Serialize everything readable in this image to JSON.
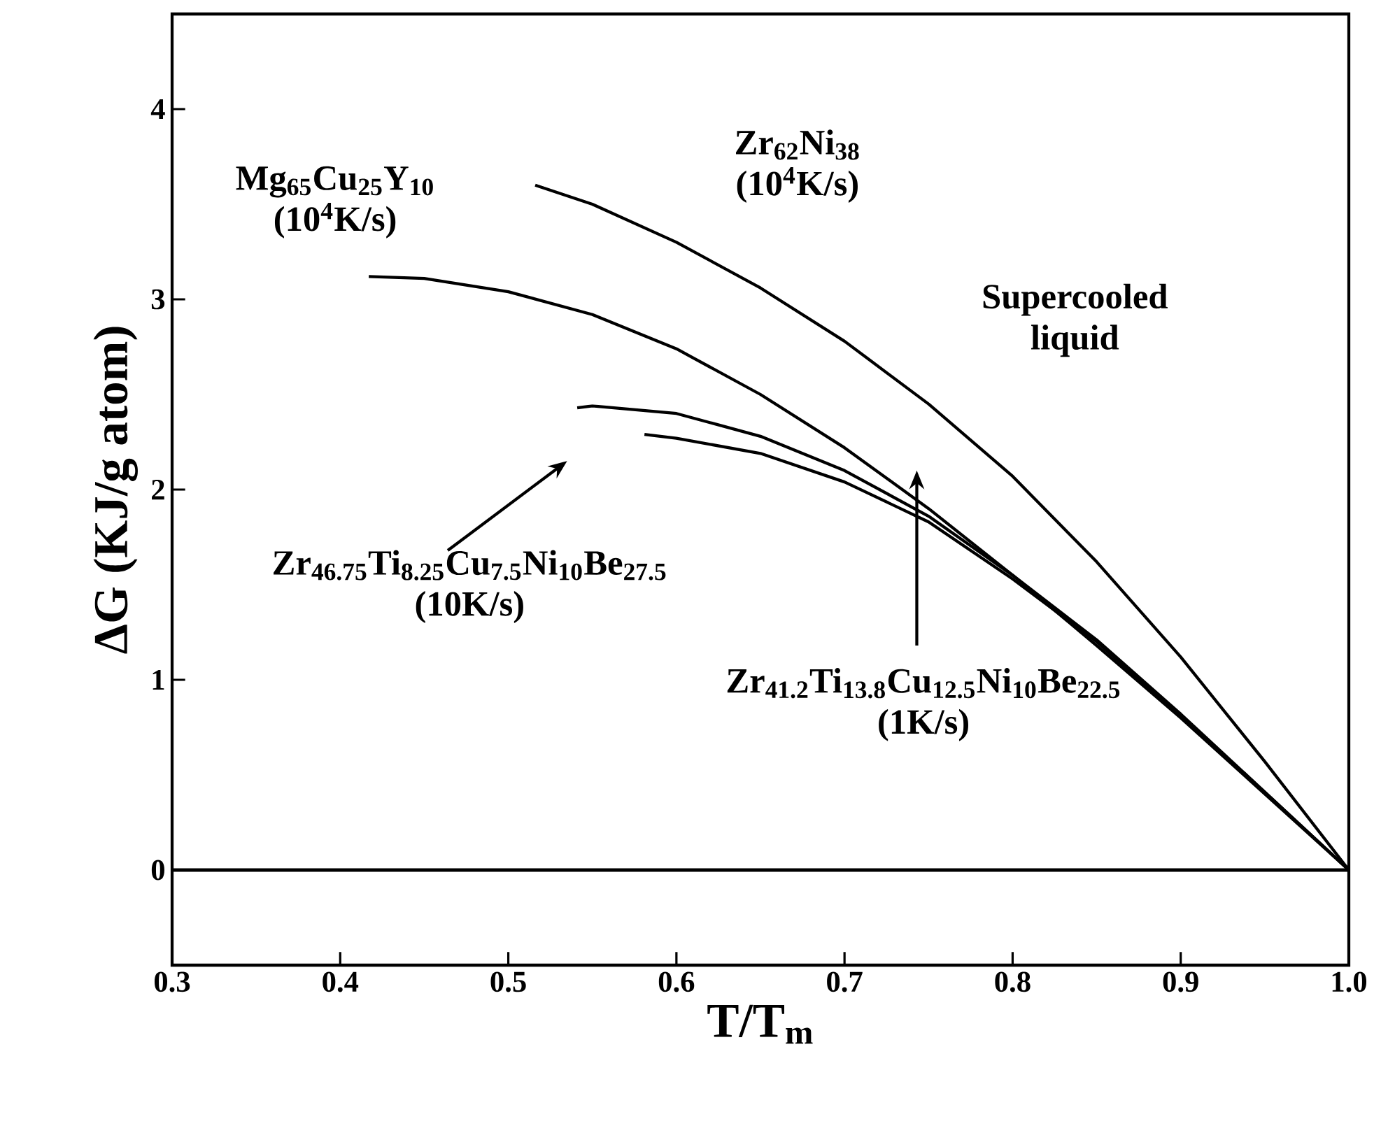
{
  "chart_data": {
    "type": "line",
    "xlabel": "T/T$_{m}$",
    "ylabel": "ΔG (KJ/g atom)",
    "xlim": [
      0.3,
      1.0
    ],
    "ylim": [
      -0.5,
      4.5
    ],
    "xticks": [
      0.3,
      0.4,
      0.5,
      0.6,
      0.7,
      0.8,
      0.9,
      {
        "value": 1.0,
        "label": "1.0"
      }
    ],
    "yticks": [
      0,
      1,
      2,
      3,
      4
    ],
    "grid": false,
    "marker": "none",
    "line_style": "solid",
    "ref_lines": [
      {
        "axis": "y",
        "value": 0,
        "color": "#000000"
      }
    ],
    "annotations": [
      "Supercooled liquid"
    ],
    "series": [
      {
        "name": "Zr$_{62}$Ni$_{38}$ (10$^{4}$K/s)",
        "color": "#000000",
        "x": [
          0.516,
          0.55,
          0.6,
          0.65,
          0.7,
          0.75,
          0.8,
          0.85,
          0.9,
          0.95,
          1.0
        ],
        "values": [
          3.6,
          3.5,
          3.3,
          3.06,
          2.78,
          2.45,
          2.07,
          1.62,
          1.12,
          0.57,
          0
        ]
      },
      {
        "name": "Mg$_{65}$Cu$_{25}$Y$_{10}$ (10$^{4}$K/s)",
        "color": "#000000",
        "x": [
          0.417,
          0.45,
          0.5,
          0.55,
          0.6,
          0.65,
          0.7,
          0.75,
          0.8,
          0.85,
          0.9,
          0.95,
          1.0
        ],
        "values": [
          3.12,
          3.11,
          3.04,
          2.92,
          2.74,
          2.5,
          2.22,
          1.9,
          1.55,
          1.18,
          0.8,
          0.4,
          0
        ]
      },
      {
        "name": "Zr$_{46.75}$Ti$_{8.25}$Cu$_{7.5}$Ni$_{10}$Be$_{27.5}$ (10K/s)",
        "color": "#000000",
        "x": [
          0.541,
          0.55,
          0.6,
          0.65,
          0.7,
          0.75,
          0.8,
          0.85,
          0.9,
          0.95,
          1.0
        ],
        "values": [
          2.43,
          2.44,
          2.4,
          2.28,
          2.1,
          1.86,
          1.55,
          1.21,
          0.82,
          0.41,
          0
        ]
      },
      {
        "name": "Zr$_{41.2}$Ti$_{13.8}$Cu$_{12.5}$Ni$_{10}$Be$_{22.5}$ (1K/s)",
        "color": "#000000",
        "x": [
          0.581,
          0.6,
          0.65,
          0.7,
          0.75,
          0.8,
          0.85,
          0.9,
          0.95,
          1.0
        ],
        "values": [
          2.29,
          2.27,
          2.19,
          2.04,
          1.83,
          1.53,
          1.2,
          0.81,
          0.41,
          0
        ]
      }
    ]
  }
}
